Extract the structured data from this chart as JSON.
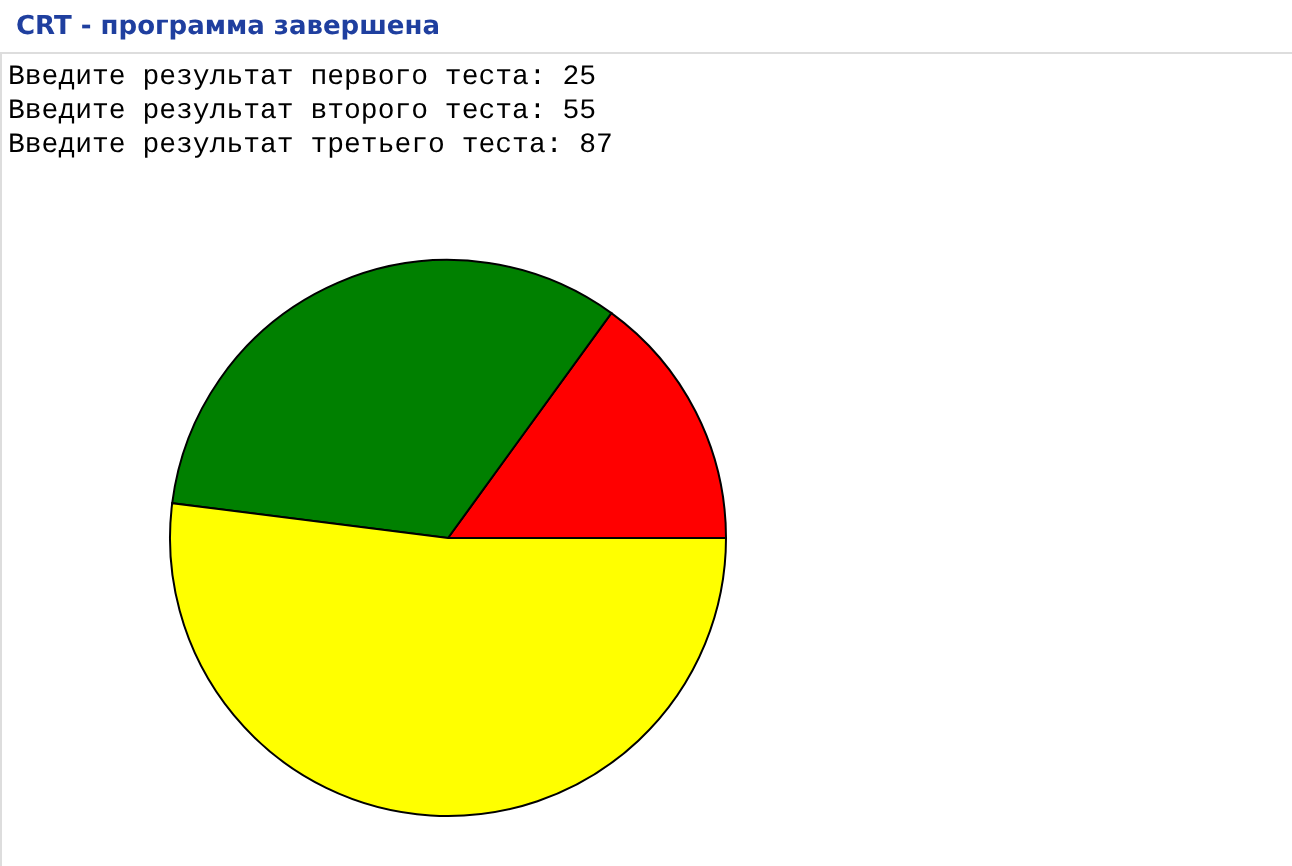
{
  "chart_data": {
    "type": "pie",
    "title": "CRT - программа завершена",
    "categories": [
      null,
      null,
      null
    ],
    "values": [
      15,
      33,
      52
    ],
    "colors": [
      "#ff0000",
      "#008000",
      "#ffff00"
    ],
    "annotations": [
      "Введите результат первого теста:  25",
      "Введите результат второго теста:  55",
      "Введите результат третьего теста:  87"
    ],
    "legend": false
  }
}
